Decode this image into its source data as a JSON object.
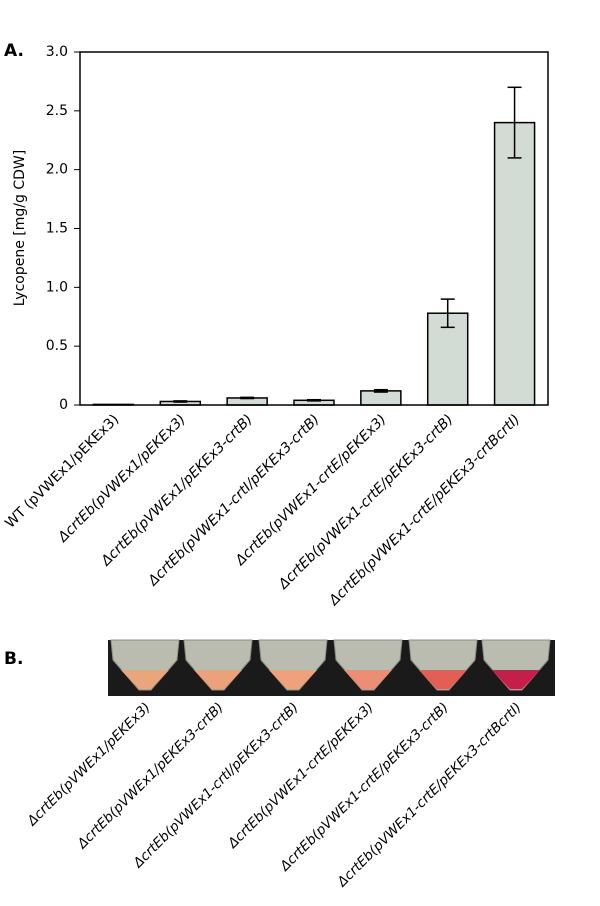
{
  "panel_labels": [
    "A.",
    "B."
  ],
  "chart_data": {
    "type": "bar",
    "ylabel": "Lycopene [mg/g CDW]",
    "categories": [
      "WT (pVWEx1/pEKEx3)",
      "ΔcrtEb(pVWEx1/pEKEx3)",
      "ΔcrtEb(pVWEx1/pEKEx3-crtB)",
      "ΔcrtEb(pVWEx1-crtI/pEKEx3-crtB)",
      "ΔcrtEb(pVWEx1-crtE/pEKEx3)",
      "ΔcrtEb(pVWEx1-crtE/pEKEx3-crtB)",
      "ΔcrtEb(pVWEx1-crtE/pEKEx3-crtBcrtI)"
    ],
    "values": [
      0.005,
      0.03,
      0.06,
      0.04,
      0.12,
      0.78,
      2.4
    ],
    "errors": [
      0,
      0.005,
      0.005,
      0.005,
      0.01,
      0.12,
      0.3
    ],
    "color": "#d3dbd5",
    "ylim": [
      0,
      3
    ],
    "yticks": [
      0,
      0.5,
      {
        "value": 1,
        "label": "1.0"
      },
      1.5,
      {
        "value": 2,
        "label": "2.0"
      },
      2.5,
      {
        "value": 3,
        "label": "3.0"
      }
    ]
  },
  "photo_labels": [
    "ΔcrtEb(pVWEx1/pEKEx3)",
    "ΔcrtEb(pVWEx1/pEKEx3-crtB)",
    "ΔcrtEb(pVWEx1-crtI/pEKEx3-crtB)",
    "ΔcrtEb(pVWEx1-crtE/pEKEx3)",
    "ΔcrtEb(pVWEx1-crtE/pEKEx3-crtB)",
    "ΔcrtEb(pVWEx1-crtE/pEKEx3-crtBcrtI)"
  ]
}
